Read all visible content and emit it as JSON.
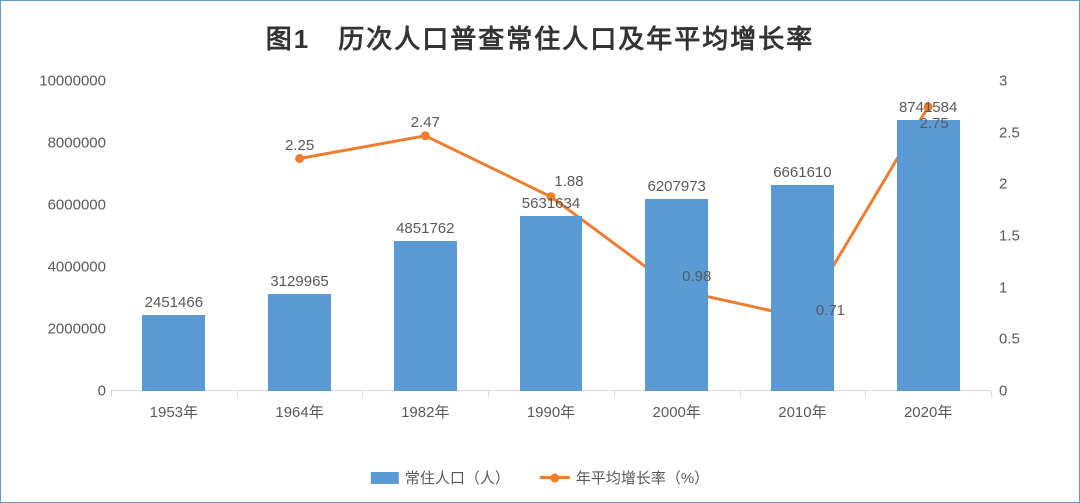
{
  "chart": {
    "type": "bar+line",
    "title": "图1　历次人口普查常住人口及年平均增长率",
    "title_fontsize": 26,
    "title_color": "#333333",
    "background_color": "#ffffff",
    "border_color": "#5b9bd5",
    "categories": [
      "1953年",
      "1964年",
      "1982年",
      "1990年",
      "2000年",
      "2010年",
      "2020年"
    ],
    "bar_series": {
      "name": "常住人口（人）",
      "values": [
        2451466,
        3129965,
        4851762,
        5631634,
        6207973,
        6661610,
        8741584
      ],
      "color": "#5b9bd5",
      "bar_width_ratio": 0.5
    },
    "line_series": {
      "name": "年平均增长率（%）",
      "values": [
        null,
        2.25,
        2.47,
        1.88,
        0.98,
        0.71,
        2.75
      ],
      "color": "#ed7d31",
      "line_width": 3,
      "marker_size": 9,
      "marker_shape": "circle"
    },
    "y_axis_left": {
      "min": 0,
      "max": 10000000,
      "step": 2000000,
      "ticks": [
        "0",
        "2000000",
        "4000000",
        "6000000",
        "8000000",
        "10000000"
      ],
      "label_fontsize": 15,
      "label_color": "#595959"
    },
    "y_axis_right": {
      "min": 0,
      "max": 3,
      "step": 0.5,
      "ticks": [
        "0",
        "0.5",
        "1",
        "1.5",
        "2",
        "2.5",
        "3"
      ],
      "label_fontsize": 15,
      "label_color": "#595959"
    },
    "x_axis": {
      "label_fontsize": 15,
      "label_color": "#595959",
      "tick_color": "#d9d9d9"
    },
    "legend": {
      "position": "bottom",
      "items": [
        "常住人口（人）",
        "年平均增长率（%）"
      ],
      "fontsize": 15,
      "color": "#595959"
    },
    "grid": {
      "show": false
    },
    "data_label_fontsize": 15,
    "data_label_color": "#595959"
  }
}
